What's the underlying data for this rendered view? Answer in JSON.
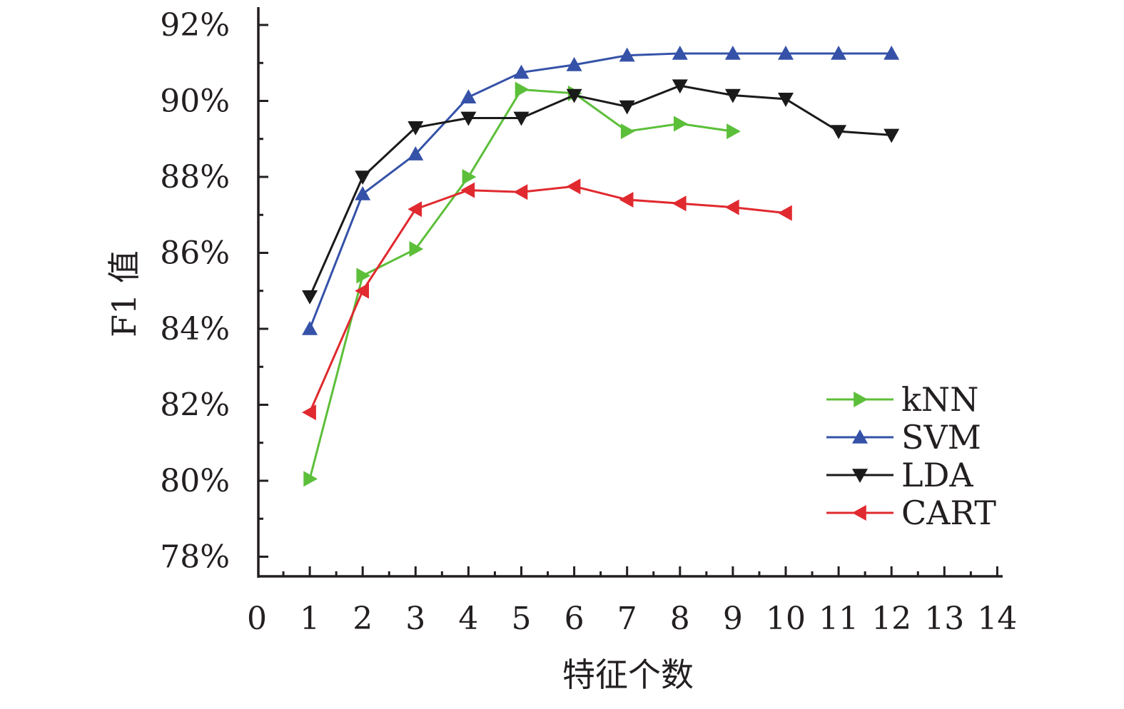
{
  "chart_data": {
    "type": "line",
    "title": "",
    "xlabel": "特征个数",
    "ylabel": "F1 值",
    "xlim": [
      0,
      14
    ],
    "ylim": [
      77,
      92.5
    ],
    "x_ticks": [
      0,
      1,
      2,
      3,
      4,
      5,
      6,
      7,
      8,
      9,
      10,
      11,
      12,
      13,
      14
    ],
    "x_tick_labels": [
      "0",
      "1",
      "2",
      "3",
      "4",
      "5",
      "6",
      "7",
      "8",
      "9",
      "10",
      "11",
      "12",
      "13",
      "14"
    ],
    "y_ticks": [
      78,
      80,
      82,
      84,
      86,
      88,
      90,
      92
    ],
    "y_tick_labels": [
      "78%",
      "80%",
      "82%",
      "84%",
      "86%",
      "88%",
      "90%",
      "92%"
    ],
    "y_minor_step": 1,
    "grid": false,
    "legend_position": "bottom-right",
    "series": [
      {
        "name": "kNN",
        "color": "#5cbf3a",
        "marker": "triangle-right",
        "x": [
          1,
          2,
          3,
          4,
          5,
          6,
          7,
          8,
          9
        ],
        "values": [
          80.05,
          85.4,
          86.1,
          88.0,
          90.3,
          90.2,
          89.2,
          89.4,
          89.2
        ]
      },
      {
        "name": "SVM",
        "color": "#3552a8",
        "marker": "triangle-up",
        "x": [
          1,
          2,
          3,
          4,
          5,
          6,
          7,
          8,
          9,
          10,
          11,
          12
        ],
        "values": [
          84.0,
          87.55,
          88.6,
          90.1,
          90.75,
          90.95,
          91.2,
          91.25,
          91.25,
          91.25,
          91.25,
          91.25
        ]
      },
      {
        "name": "LDA",
        "color": "#1a1a1a",
        "marker": "triangle-down",
        "x": [
          1,
          2,
          3,
          4,
          5,
          6,
          7,
          8,
          9,
          10,
          11,
          12
        ],
        "values": [
          84.85,
          88.0,
          89.3,
          89.55,
          89.55,
          90.15,
          89.85,
          90.4,
          90.15,
          90.05,
          89.2,
          89.1
        ]
      },
      {
        "name": "CART",
        "color": "#e02a2f",
        "marker": "triangle-left",
        "x": [
          1,
          2,
          3,
          4,
          5,
          6,
          7,
          8,
          9,
          10
        ],
        "values": [
          81.8,
          85.0,
          87.15,
          87.65,
          87.6,
          87.75,
          87.4,
          87.3,
          87.2,
          87.05
        ]
      }
    ]
  }
}
